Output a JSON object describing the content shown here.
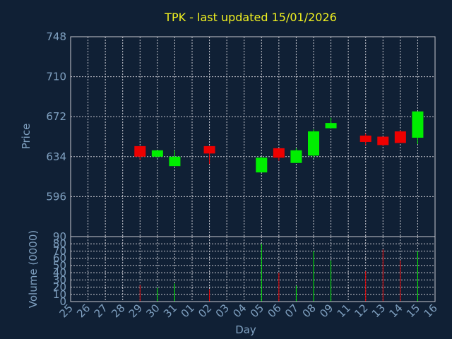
{
  "chart_data": {
    "type": "candlestick",
    "title": "TPK - last updated 15/01/2026",
    "xlabel": "Day",
    "ylabel": "Price",
    "volume_label": "Volume (0000)",
    "x_tick_labels": [
      "25",
      "26",
      "27",
      "28",
      "29",
      "30",
      "31",
      "01",
      "02",
      "03",
      "04",
      "05",
      "06",
      "07",
      "08",
      "09",
      "11",
      "12",
      "13",
      "14",
      "15",
      "16"
    ],
    "price_ticks": [
      748,
      710,
      672,
      634,
      596
    ],
    "price_ylim": [
      558,
      748
    ],
    "volume_ticks": [
      0,
      10,
      20,
      30,
      40,
      50,
      60,
      70,
      80,
      90
    ],
    "volume_ylim": [
      0,
      90
    ],
    "candles": [
      {
        "day": "29",
        "open": 644,
        "close": 634,
        "high": 644,
        "low": 631,
        "volume": 23
      },
      {
        "day": "30",
        "open": 634,
        "close": 640,
        "high": 640,
        "low": 633,
        "volume": 19
      },
      {
        "day": "31",
        "open": 625,
        "close": 634,
        "high": 640,
        "low": 625,
        "volume": 25
      },
      {
        "day": "02",
        "open": 644,
        "close": 637,
        "high": 644,
        "low": 627,
        "volume": 17
      },
      {
        "day": "05",
        "open": 619,
        "close": 633,
        "high": 634,
        "low": 619,
        "volume": 80
      },
      {
        "day": "06",
        "open": 642,
        "close": 633,
        "high": 642,
        "low": 630,
        "volume": 40
      },
      {
        "day": "07",
        "open": 628,
        "close": 640,
        "high": 642,
        "low": 628,
        "volume": 22
      },
      {
        "day": "08",
        "open": 635,
        "close": 658,
        "high": 660,
        "low": 633,
        "volume": 70
      },
      {
        "day": "09",
        "open": 661,
        "close": 666,
        "high": 671,
        "low": 661,
        "volume": 57
      },
      {
        "day": "12",
        "open": 654,
        "close": 648,
        "high": 656,
        "low": 645,
        "volume": 42
      },
      {
        "day": "13",
        "open": 653,
        "close": 645,
        "high": 653,
        "low": 644,
        "volume": 72
      },
      {
        "day": "14",
        "open": 658,
        "close": 647,
        "high": 659,
        "low": 647,
        "volume": 57
      },
      {
        "day": "15",
        "open": 652,
        "close": 677,
        "high": 677,
        "low": 646,
        "volume": 70
      }
    ],
    "grid": true,
    "colors": {
      "background": "#102035",
      "plot_border": "#c8c8d0",
      "grid": "#c8c8d0",
      "title": "#f0f020",
      "axis_text": "#7fa0c0",
      "up": "#00ee00",
      "down": "#ee0000"
    }
  }
}
